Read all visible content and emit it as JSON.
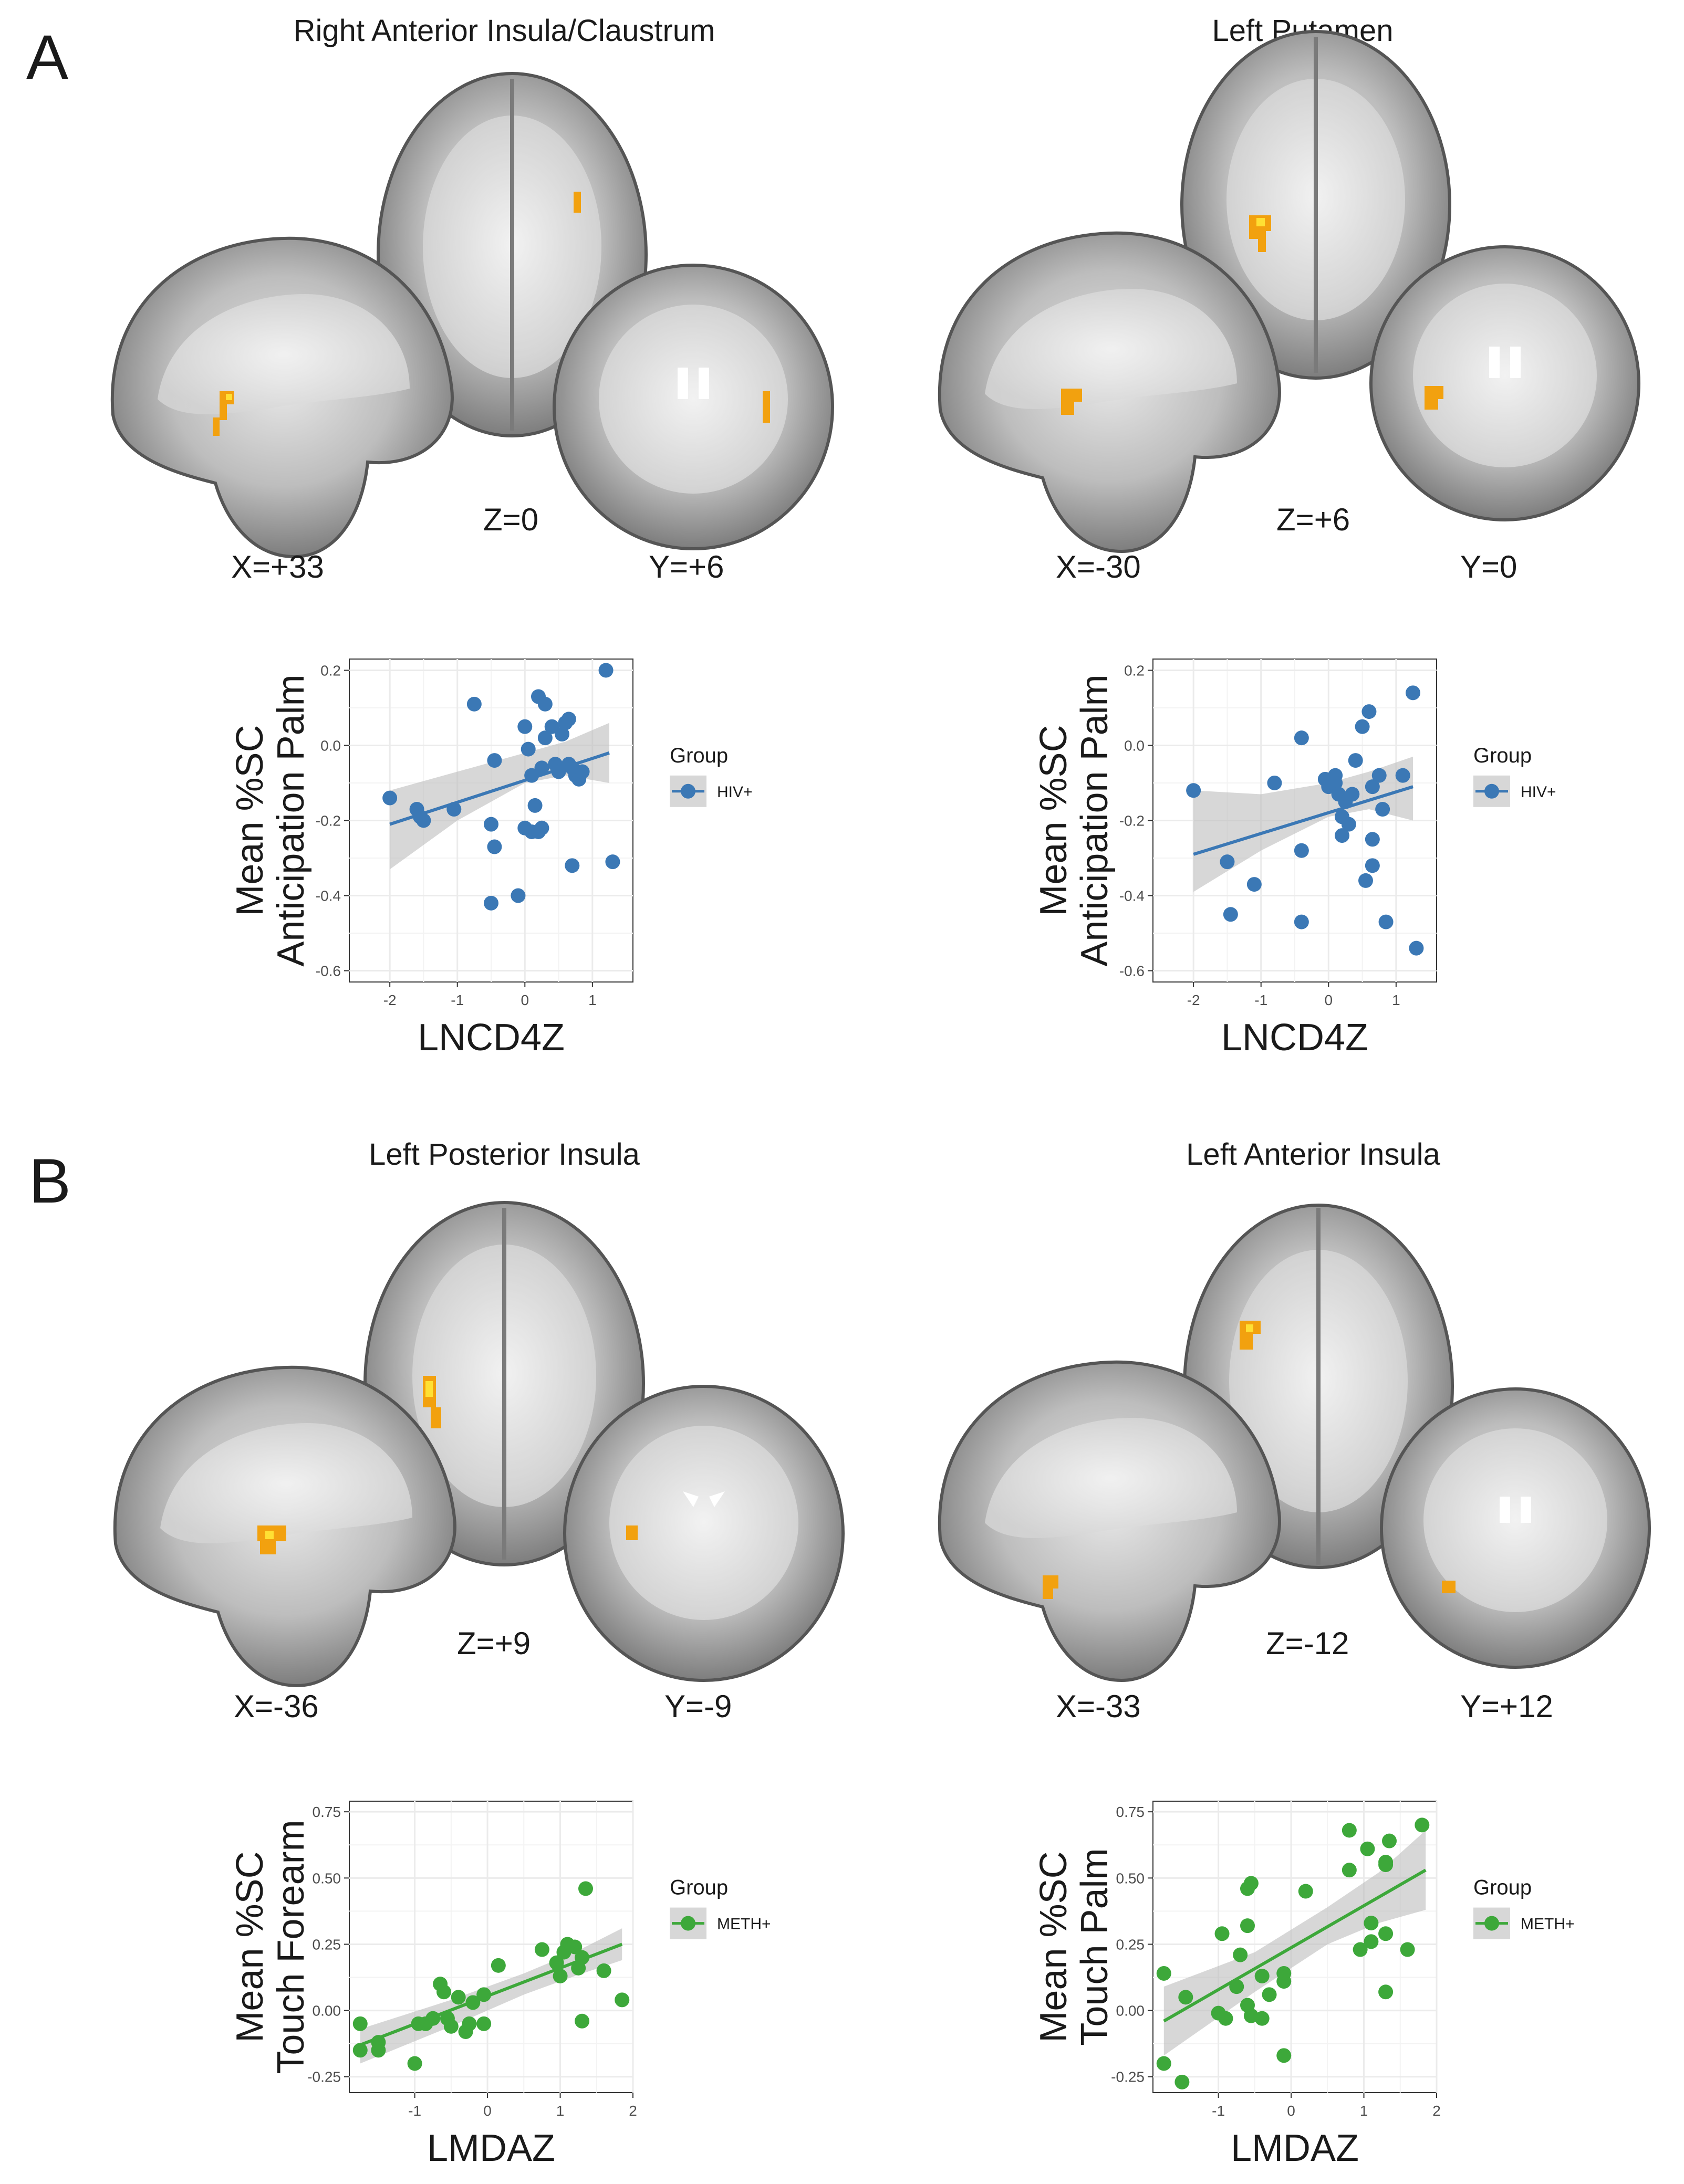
{
  "panels": [
    {
      "letter": "A",
      "sections": [
        {
          "region_title": "Right Anterior Insula/Claustrum",
          "coords": {
            "x": "X=+33",
            "z": "Z=0",
            "y": "Y=+6"
          }
        },
        {
          "region_title": "Left Putamen",
          "coords": {
            "x": "X=-30",
            "z": "Z=+6",
            "y": "Y=0"
          }
        }
      ]
    },
    {
      "letter": "B",
      "sections": [
        {
          "region_title": "Left Posterior Insula",
          "coords": {
            "x": "X=-36",
            "z": "Z=+9",
            "y": "Y=-9"
          }
        },
        {
          "region_title": "Left Anterior Insula",
          "coords": {
            "x": "X=-33",
            "z": "Z=-12",
            "y": "Y=+12"
          }
        }
      ]
    }
  ],
  "colors": {
    "hiv": "#3b78b5",
    "meth": "#3da83a",
    "ribbon": "#bdbdbd",
    "grid": "#ebebeb",
    "activation": "#f2a10f",
    "activation_hot": "#ffe033"
  },
  "chart_data": [
    {
      "type": "scatter",
      "xlabel": "LNCD4Z",
      "ylabel_line1": "Mean %SC",
      "ylabel_line2": "Anticipation Palm",
      "xlim": [
        -2.6,
        1.6
      ],
      "ylim": [
        -0.63,
        0.23
      ],
      "xticks": [
        -2,
        -1,
        0,
        1
      ],
      "xtick_labels": [
        "-2",
        "-1",
        "0",
        "1"
      ],
      "yticks": [
        0.2,
        0.0,
        -0.2,
        -0.4,
        -0.6
      ],
      "ytick_labels": [
        "0.2",
        "0.0",
        "-0.2",
        "-0.4",
        "-0.6"
      ],
      "legend_title": "Group",
      "series": [
        {
          "name": "HIV+",
          "color": "#3b78b5",
          "points": [
            [
              -2.0,
              -0.14
            ],
            [
              -1.6,
              -0.17
            ],
            [
              -1.55,
              -0.19
            ],
            [
              -1.5,
              -0.2
            ],
            [
              -1.05,
              -0.17
            ],
            [
              -0.75,
              0.11
            ],
            [
              -0.45,
              -0.04
            ],
            [
              -0.5,
              -0.21
            ],
            [
              -0.45,
              -0.27
            ],
            [
              -0.5,
              -0.42
            ],
            [
              -0.1,
              -0.4
            ],
            [
              0.0,
              0.05
            ],
            [
              0.05,
              -0.01
            ],
            [
              0.0,
              -0.22
            ],
            [
              0.1,
              -0.23
            ],
            [
              0.2,
              -0.23
            ],
            [
              0.25,
              -0.22
            ],
            [
              0.15,
              -0.16
            ],
            [
              0.1,
              -0.08
            ],
            [
              0.2,
              0.13
            ],
            [
              0.3,
              0.11
            ],
            [
              0.3,
              0.02
            ],
            [
              0.25,
              -0.06
            ],
            [
              0.4,
              0.05
            ],
            [
              0.45,
              -0.05
            ],
            [
              0.5,
              -0.07
            ],
            [
              0.55,
              0.03
            ],
            [
              0.6,
              0.06
            ],
            [
              0.65,
              0.07
            ],
            [
              0.65,
              -0.05
            ],
            [
              0.7,
              -0.06
            ],
            [
              0.75,
              -0.08
            ],
            [
              0.8,
              -0.09
            ],
            [
              0.85,
              -0.07
            ],
            [
              0.7,
              -0.32
            ],
            [
              1.2,
              0.2
            ],
            [
              1.3,
              -0.31
            ]
          ],
          "fit": {
            "x": [
              -2.0,
              1.25
            ],
            "y": [
              -0.21,
              -0.02
            ]
          },
          "ci_upper": [
            [
              -2.0,
              -0.12
            ],
            [
              -1.0,
              -0.07
            ],
            [
              0.0,
              -0.02
            ],
            [
              0.6,
              0.01
            ],
            [
              1.25,
              0.06
            ]
          ],
          "ci_lower": [
            [
              -2.0,
              -0.33
            ],
            [
              -1.0,
              -0.2
            ],
            [
              0.0,
              -0.1
            ],
            [
              0.6,
              -0.08
            ],
            [
              1.25,
              -0.1
            ]
          ]
        }
      ]
    },
    {
      "type": "scatter",
      "xlabel": "LNCD4Z",
      "ylabel_line1": "Mean %SC",
      "ylabel_line2": "Anticipation Palm",
      "xlim": [
        -2.6,
        1.6
      ],
      "ylim": [
        -0.63,
        0.23
      ],
      "xticks": [
        -2,
        -1,
        0,
        1
      ],
      "xtick_labels": [
        "-2",
        "-1",
        "0",
        "1"
      ],
      "yticks": [
        0.2,
        0.0,
        -0.2,
        -0.4,
        -0.6
      ],
      "ytick_labels": [
        "0.2",
        "0.0",
        "-0.2",
        "-0.4",
        "-0.6"
      ],
      "legend_title": "Group",
      "series": [
        {
          "name": "HIV+",
          "color": "#3b78b5",
          "points": [
            [
              -2.0,
              -0.12
            ],
            [
              -1.5,
              -0.31
            ],
            [
              -1.45,
              -0.45
            ],
            [
              -1.1,
              -0.37
            ],
            [
              -0.8,
              -0.1
            ],
            [
              -0.4,
              0.02
            ],
            [
              -0.4,
              -0.28
            ],
            [
              -0.4,
              -0.47
            ],
            [
              -0.05,
              -0.09
            ],
            [
              0.0,
              -0.11
            ],
            [
              0.1,
              -0.08
            ],
            [
              0.1,
              -0.1
            ],
            [
              0.15,
              -0.13
            ],
            [
              0.2,
              -0.19
            ],
            [
              0.2,
              -0.24
            ],
            [
              0.25,
              -0.15
            ],
            [
              0.3,
              -0.21
            ],
            [
              0.35,
              -0.13
            ],
            [
              0.4,
              -0.04
            ],
            [
              0.5,
              0.05
            ],
            [
              0.6,
              0.09
            ],
            [
              0.65,
              -0.11
            ],
            [
              0.65,
              -0.25
            ],
            [
              0.65,
              -0.32
            ],
            [
              0.55,
              -0.36
            ],
            [
              0.75,
              -0.08
            ],
            [
              0.8,
              -0.17
            ],
            [
              0.85,
              -0.47
            ],
            [
              1.1,
              -0.08
            ],
            [
              1.25,
              0.14
            ],
            [
              1.3,
              -0.54
            ]
          ],
          "fit": {
            "x": [
              -2.0,
              1.25
            ],
            "y": [
              -0.29,
              -0.11
            ]
          },
          "ci_upper": [
            [
              -2.0,
              -0.12
            ],
            [
              -1.0,
              -0.13
            ],
            [
              0.0,
              -0.1
            ],
            [
              0.6,
              -0.07
            ],
            [
              1.25,
              -0.03
            ]
          ],
          "ci_lower": [
            [
              -2.0,
              -0.39
            ],
            [
              -1.0,
              -0.28
            ],
            [
              0.0,
              -0.19
            ],
            [
              0.6,
              -0.17
            ],
            [
              1.25,
              -0.2
            ]
          ]
        }
      ]
    },
    {
      "type": "scatter",
      "xlabel": "LMDAZ",
      "ylabel_line1": "Mean %SC",
      "ylabel_line2": "Touch Forearm",
      "xlim": [
        -1.9,
        2.0
      ],
      "ylim": [
        -0.31,
        0.79
      ],
      "xticks": [
        -1,
        0,
        1,
        2
      ],
      "xtick_labels": [
        "-1",
        "0",
        "1",
        "2"
      ],
      "yticks": [
        0.75,
        0.5,
        0.25,
        0.0,
        -0.25
      ],
      "ytick_labels": [
        "0.75",
        "0.50",
        "0.25",
        "0.00",
        "-0.25"
      ],
      "legend_title": "Group",
      "series": [
        {
          "name": "METH+",
          "color": "#3da83a",
          "points": [
            [
              -1.75,
              -0.05
            ],
            [
              -1.75,
              -0.15
            ],
            [
              -1.5,
              -0.12
            ],
            [
              -1.5,
              -0.15
            ],
            [
              -1.0,
              -0.2
            ],
            [
              -0.95,
              -0.05
            ],
            [
              -0.85,
              -0.05
            ],
            [
              -0.75,
              -0.03
            ],
            [
              -0.65,
              0.1
            ],
            [
              -0.6,
              0.07
            ],
            [
              -0.55,
              -0.03
            ],
            [
              -0.5,
              -0.06
            ],
            [
              -0.4,
              0.05
            ],
            [
              -0.3,
              -0.08
            ],
            [
              -0.25,
              -0.05
            ],
            [
              -0.2,
              0.03
            ],
            [
              -0.05,
              0.06
            ],
            [
              -0.05,
              -0.05
            ],
            [
              0.15,
              0.17
            ],
            [
              0.75,
              0.23
            ],
            [
              0.95,
              0.18
            ],
            [
              1.0,
              0.13
            ],
            [
              1.05,
              0.22
            ],
            [
              1.1,
              0.25
            ],
            [
              1.2,
              0.24
            ],
            [
              1.25,
              0.16
            ],
            [
              1.3,
              0.2
            ],
            [
              1.3,
              -0.04
            ],
            [
              1.35,
              0.46
            ],
            [
              1.6,
              0.15
            ],
            [
              1.85,
              0.04
            ]
          ],
          "fit": {
            "x": [
              -1.75,
              1.85
            ],
            "y": [
              -0.13,
              0.25
            ]
          },
          "ci_upper": [
            [
              -1.75,
              -0.07
            ],
            [
              -0.5,
              0.04
            ],
            [
              0.5,
              0.14
            ],
            [
              1.2,
              0.22
            ],
            [
              1.85,
              0.31
            ]
          ],
          "ci_lower": [
            [
              -1.75,
              -0.2
            ],
            [
              -0.5,
              -0.06
            ],
            [
              0.5,
              0.06
            ],
            [
              1.2,
              0.13
            ],
            [
              1.85,
              0.19
            ]
          ]
        }
      ]
    },
    {
      "type": "scatter",
      "xlabel": "LMDAZ",
      "ylabel_line1": "Mean %SC",
      "ylabel_line2": "Touch Palm",
      "xlim": [
        -1.9,
        2.0
      ],
      "ylim": [
        -0.31,
        0.79
      ],
      "xticks": [
        -1,
        0,
        1,
        2
      ],
      "xtick_labels": [
        "-1",
        "0",
        "1",
        "2"
      ],
      "yticks": [
        0.75,
        0.5,
        0.25,
        0.0,
        -0.25
      ],
      "ytick_labels": [
        "0.75",
        "0.50",
        "0.25",
        "0.00",
        "-0.25"
      ],
      "legend_title": "Group",
      "series": [
        {
          "name": "METH+",
          "color": "#3da83a",
          "points": [
            [
              -1.75,
              0.14
            ],
            [
              -1.75,
              -0.2
            ],
            [
              -1.5,
              -0.27
            ],
            [
              -1.45,
              0.05
            ],
            [
              -1.0,
              -0.01
            ],
            [
              -0.95,
              0.29
            ],
            [
              -0.9,
              -0.03
            ],
            [
              -0.75,
              0.09
            ],
            [
              -0.7,
              0.21
            ],
            [
              -0.6,
              0.32
            ],
            [
              -0.6,
              0.46
            ],
            [
              -0.55,
              0.48
            ],
            [
              -0.6,
              0.02
            ],
            [
              -0.55,
              -0.02
            ],
            [
              -0.4,
              -0.03
            ],
            [
              -0.4,
              0.13
            ],
            [
              -0.3,
              0.06
            ],
            [
              -0.1,
              0.11
            ],
            [
              -0.1,
              0.14
            ],
            [
              -0.1,
              -0.17
            ],
            [
              0.2,
              0.45
            ],
            [
              0.8,
              0.68
            ],
            [
              0.8,
              0.53
            ],
            [
              0.95,
              0.23
            ],
            [
              1.05,
              0.61
            ],
            [
              1.1,
              0.26
            ],
            [
              1.1,
              0.33
            ],
            [
              1.3,
              0.56
            ],
            [
              1.3,
              0.55
            ],
            [
              1.35,
              0.64
            ],
            [
              1.3,
              0.29
            ],
            [
              1.3,
              0.07
            ],
            [
              1.6,
              0.23
            ],
            [
              1.8,
              0.7
            ]
          ],
          "fit": {
            "x": [
              -1.75,
              1.85
            ],
            "y": [
              -0.04,
              0.53
            ]
          },
          "ci_upper": [
            [
              -1.75,
              0.09
            ],
            [
              -0.5,
              0.22
            ],
            [
              0.5,
              0.39
            ],
            [
              1.2,
              0.52
            ],
            [
              1.85,
              0.68
            ]
          ],
          "ci_lower": [
            [
              -1.75,
              -0.17
            ],
            [
              -0.5,
              0.07
            ],
            [
              0.5,
              0.25
            ],
            [
              1.2,
              0.33
            ],
            [
              1.85,
              0.38
            ]
          ]
        }
      ]
    }
  ]
}
